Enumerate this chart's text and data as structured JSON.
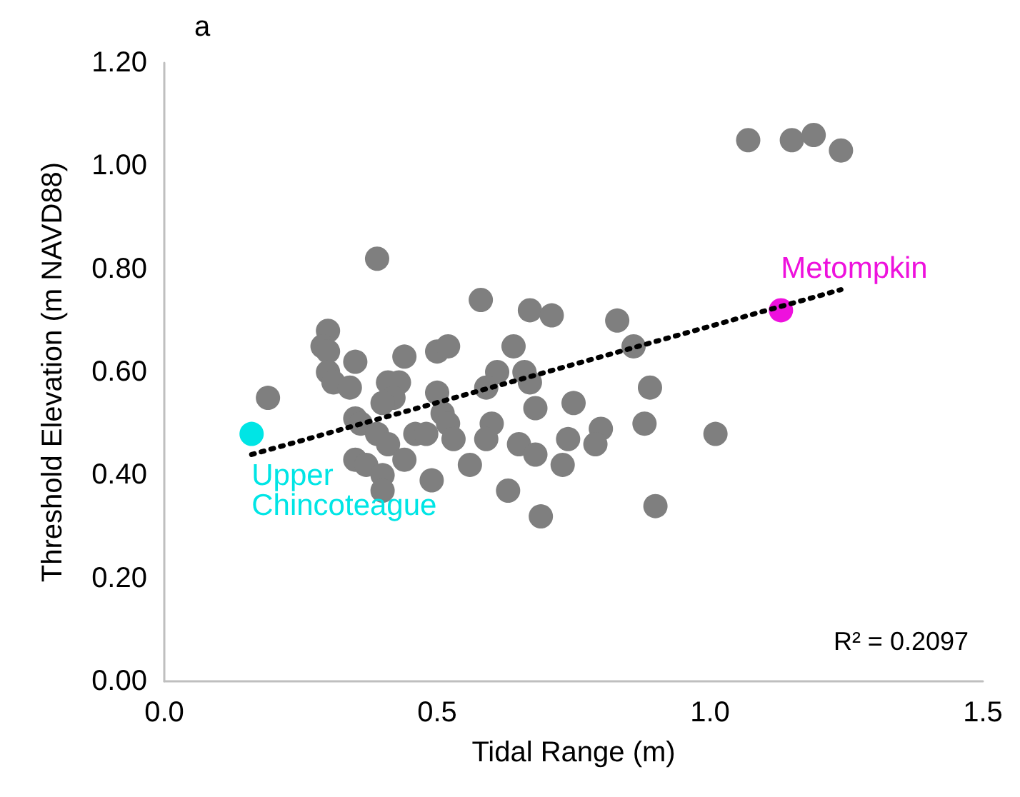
{
  "chart_data": {
    "type": "scatter",
    "title": "a",
    "xlabel": "Tidal Range (m)",
    "ylabel": "Threshold Elevation (m NAVD88)",
    "xlim": [
      0,
      1.5
    ],
    "xticks": [
      {
        "value": 0,
        "label": "0.0"
      },
      {
        "value": 0.5,
        "label": "0.5"
      },
      {
        "value": 1,
        "label": "1.0"
      },
      {
        "value": 1.5,
        "label": "1.5"
      }
    ],
    "ylim": [
      0,
      1.2
    ],
    "yticks": [
      {
        "value": 0,
        "label": "0.00"
      },
      {
        "value": 0.2,
        "label": "0.20"
      },
      {
        "value": 0.4,
        "label": "0.40"
      },
      {
        "value": 0.6,
        "label": "0.60"
      },
      {
        "value": 0.8,
        "label": "0.80"
      },
      {
        "value": 1,
        "label": "1.00"
      },
      {
        "value": 1.2,
        "label": "1.20"
      }
    ],
    "grid": false,
    "legend": false,
    "marker": "circle",
    "annotations": [
      "R² = 0.2097"
    ],
    "series": [
      {
        "color": "#7f7f7f",
        "x": [
          0.39,
          0.19,
          0.3,
          0.29,
          0.3,
          0.35,
          0.44,
          0.5,
          0.3,
          0.31,
          0.34,
          0.41,
          0.43,
          0.42,
          0.4,
          0.5,
          0.35,
          0.36,
          0.39,
          0.41,
          0.46,
          0.48,
          0.35,
          0.37,
          0.44,
          0.4,
          0.4,
          0.49,
          0.58,
          0.67,
          0.71,
          0.83,
          0.52,
          0.64,
          0.61,
          0.59,
          0.66,
          0.67,
          0.86,
          0.89,
          0.51,
          0.52,
          0.53,
          0.6,
          0.59,
          0.68,
          0.75,
          0.65,
          0.68,
          0.74,
          0.8,
          0.79,
          0.88,
          0.73,
          0.56,
          0.63,
          0.69,
          0.9,
          1.01,
          1.07,
          1.15,
          1.19,
          1.24
        ],
        "values": [
          0.82,
          0.55,
          0.68,
          0.65,
          0.64,
          0.62,
          0.63,
          0.64,
          0.6,
          0.58,
          0.57,
          0.58,
          0.58,
          0.55,
          0.54,
          0.56,
          0.51,
          0.5,
          0.48,
          0.46,
          0.48,
          0.48,
          0.43,
          0.42,
          0.43,
          0.4,
          0.37,
          0.39,
          0.74,
          0.72,
          0.71,
          0.7,
          0.65,
          0.65,
          0.6,
          0.57,
          0.6,
          0.58,
          0.65,
          0.57,
          0.52,
          0.5,
          0.47,
          0.5,
          0.47,
          0.53,
          0.54,
          0.46,
          0.44,
          0.47,
          0.49,
          0.46,
          0.5,
          0.42,
          0.42,
          0.37,
          0.32,
          0.34,
          0.48,
          1.05,
          1.05,
          1.06,
          1.03
        ]
      },
      {
        "name": "Upper Chincoteague",
        "color": "#00e5e5",
        "x": [
          0.16
        ],
        "values": [
          0.48
        ]
      },
      {
        "name": "Metompkin",
        "color": "#ee11dd",
        "x": [
          1.13
        ],
        "values": [
          0.72
        ]
      },
      {
        "type": "line",
        "color": "#000000",
        "marker": "none",
        "line_style": "dotted",
        "x": [
          0.16,
          1.24
        ],
        "values": [
          0.44,
          0.76
        ]
      }
    ]
  }
}
